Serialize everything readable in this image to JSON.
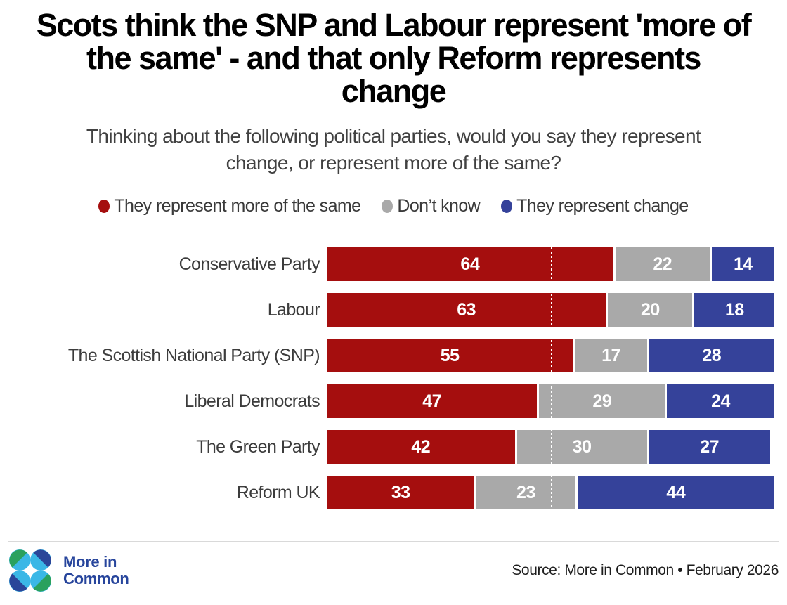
{
  "title": "Scots think the SNP and Labour represent 'more of the same' - and that only Reform represents change",
  "subtitle": "Thinking about the following political parties, would you say they represent change, or represent more of the same?",
  "legend": [
    {
      "label": "They represent more of the same",
      "color": "#a50e0e"
    },
    {
      "label": "Don’t know",
      "color": "#a9a9a9"
    },
    {
      "label": "They represent change",
      "color": "#35429a"
    }
  ],
  "chart_data": {
    "type": "bar",
    "orientation": "horizontal",
    "stacked": true,
    "xlim": [
      0,
      100
    ],
    "grid": false,
    "legend_position": "top",
    "reference_line": {
      "value": 50,
      "style": "white-dotted"
    },
    "categories": [
      "Conservative Party",
      "Labour",
      "The Scottish National Party (SNP)",
      "Liberal Democrats",
      "The Green Party",
      "Reform UK"
    ],
    "series": [
      {
        "name": "They represent more of the same",
        "color": "#a50e0e",
        "values": [
          64,
          63,
          55,
          47,
          42,
          33
        ]
      },
      {
        "name": "Don’t know",
        "color": "#a9a9a9",
        "values": [
          22,
          20,
          17,
          29,
          30,
          23
        ]
      },
      {
        "name": "They represent change",
        "color": "#35429a",
        "values": [
          14,
          18,
          28,
          24,
          27,
          44
        ]
      }
    ]
  },
  "footer": {
    "brand_line1": "More in",
    "brand_line2": "Common",
    "source": "Source: More in Common • February 2026",
    "logo_colors": {
      "green": "#2aa15e",
      "blue": "#2a4699",
      "cyan": "#3ab7e6"
    }
  }
}
